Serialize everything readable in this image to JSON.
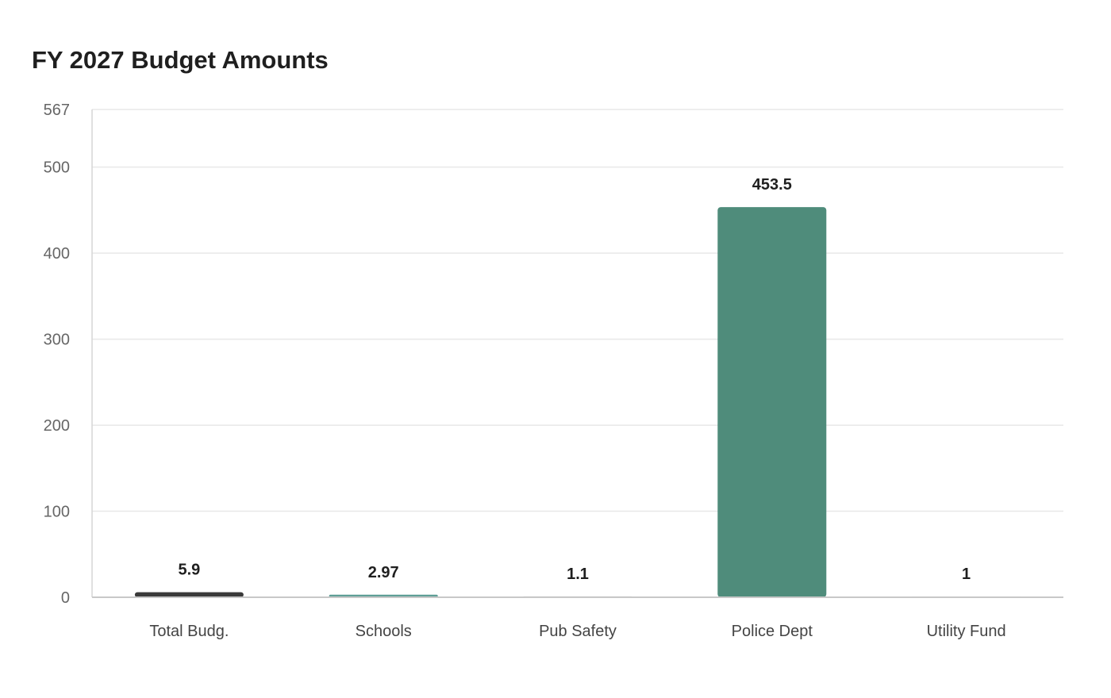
{
  "chart_data": {
    "type": "bar",
    "title": "FY 2027 Budget Amounts",
    "xlabel": "",
    "ylabel": "",
    "categories": [
      "Total Budg.",
      "Schools",
      "Pub Safety",
      "Police Dept",
      "Utility Fund"
    ],
    "values": [
      5.9,
      2.97,
      1.1,
      453.5,
      1
    ],
    "value_labels": [
      "5.9",
      "2.97",
      "1.1",
      "453.5",
      "1"
    ],
    "bar_colors": [
      "#3a3a3a",
      "#5e9e96",
      "#dedede",
      "#4f8c7b",
      "#f2f2f2"
    ],
    "ylim": [
      0,
      567
    ],
    "yticks": [
      0,
      100,
      200,
      300,
      400,
      500,
      567
    ],
    "grid": true,
    "legend": "none"
  }
}
